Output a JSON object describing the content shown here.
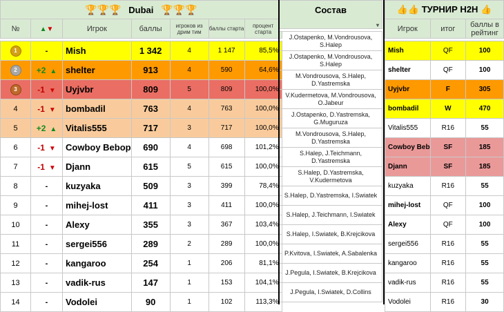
{
  "header": {
    "trophy_icon": "trophy-icon",
    "title": "Dubai",
    "col_num": "№",
    "col_player": "Игрок",
    "col_points": "баллы",
    "col_dreamteam": "игроков из дрим тим",
    "col_start_points": "баллы старта",
    "col_start_percent": "процент старта",
    "sostav_title": "Состав",
    "dropdown_icon": "▾",
    "h2h_icon": "thumbs-icon",
    "h2h_title": "ТУРНИР H2H",
    "h2h_player": "Игрок",
    "h2h_result": "итог",
    "h2h_rating_points": "баллы в рейтинг"
  },
  "colors": {
    "header_bg": "#d9ead3",
    "first": "#ffff00",
    "second": "#ff9900",
    "third": "#ea6e63",
    "fourth_fifth": "#f9cb9c",
    "h2h_pink": "#ea9999",
    "up": "#138a1e",
    "down": "#c00000"
  },
  "rows": [
    {
      "num": "",
      "medal": "gold",
      "change": "-",
      "trend": "",
      "player": "Mish",
      "points": "1 342",
      "dreamteam": "4",
      "start_points": "1 147",
      "start_percent": "85,5%",
      "lineup": "J.Ostapenko, M.Vondrousova, S.Halep"
    },
    {
      "num": "",
      "medal": "silver",
      "change": "+2",
      "trend": "up",
      "player": "shelter",
      "points": "913",
      "dreamteam": "4",
      "start_points": "590",
      "start_percent": "64,6%",
      "lineup": "J.Ostapenko, M.Vondrousova, S.Halep"
    },
    {
      "num": "",
      "medal": "bronze",
      "change": "-1",
      "trend": "down",
      "player": "Uyjvbr",
      "points": "809",
      "dreamteam": "5",
      "start_points": "809",
      "start_percent": "100,0%",
      "lineup": "M.Vondrousova, S.Halep, D.Yastremska"
    },
    {
      "num": "4",
      "medal": "",
      "change": "-1",
      "trend": "down",
      "player": "bombadil",
      "points": "763",
      "dreamteam": "4",
      "start_points": "763",
      "start_percent": "100,0%",
      "lineup": "V.Kudermetova, M.Vondrousova, O.Jabeur"
    },
    {
      "num": "5",
      "medal": "",
      "change": "+2",
      "trend": "up",
      "player": "Vitalis555",
      "points": "717",
      "dreamteam": "3",
      "start_points": "717",
      "start_percent": "100,0%",
      "lineup": "J.Ostapenko, D.Yastremska, G.Muguruza"
    },
    {
      "num": "6",
      "medal": "",
      "change": "-1",
      "trend": "down",
      "player": "Cowboy Bebop",
      "points": "690",
      "dreamteam": "4",
      "start_points": "698",
      "start_percent": "101,2%",
      "lineup": "M.Vondrousova, S.Halep, D.Yastremska"
    },
    {
      "num": "7",
      "medal": "",
      "change": "-1",
      "trend": "down",
      "player": "Djann",
      "points": "615",
      "dreamteam": "5",
      "start_points": "615",
      "start_percent": "100,0%",
      "lineup": "S.Halep, J.Teichmann, D.Yastremska"
    },
    {
      "num": "8",
      "medal": "",
      "change": "-",
      "trend": "",
      "player": "kuzyaka",
      "points": "509",
      "dreamteam": "3",
      "start_points": "399",
      "start_percent": "78,4%",
      "lineup": "S.Halep, D.Yastremska, V.Kudermetova"
    },
    {
      "num": "9",
      "medal": "",
      "change": "-",
      "trend": "",
      "player": "mihej-lost",
      "points": "411",
      "dreamteam": "3",
      "start_points": "411",
      "start_percent": "100,0%",
      "lineup": "S.Halep, D.Yastremska, I.Swiatek"
    },
    {
      "num": "10",
      "medal": "",
      "change": "-",
      "trend": "",
      "player": "Alexy",
      "points": "355",
      "dreamteam": "3",
      "start_points": "367",
      "start_percent": "103,4%",
      "lineup": "S.Halep, J.Teichmann, I.Swiatek"
    },
    {
      "num": "11",
      "medal": "",
      "change": "-",
      "trend": "",
      "player": "sergei556",
      "points": "289",
      "dreamteam": "2",
      "start_points": "289",
      "start_percent": "100,0%",
      "lineup": "S.Halep, I.Swiatek, B.Krejcikova"
    },
    {
      "num": "12",
      "medal": "",
      "change": "-",
      "trend": "",
      "player": "kangaroo",
      "points": "254",
      "dreamteam": "1",
      "start_points": "206",
      "start_percent": "81,1%",
      "lineup": "P.Kvitova, I.Swiatek, A.Sabalenka"
    },
    {
      "num": "13",
      "medal": "",
      "change": "-",
      "trend": "",
      "player": "vadik-rus",
      "points": "147",
      "dreamteam": "1",
      "start_points": "153",
      "start_percent": "104,1%",
      "lineup": "J.Pegula, I.Swiatek, B.Krejcikova"
    },
    {
      "num": "14",
      "medal": "",
      "change": "-",
      "trend": "",
      "player": "Vodolei",
      "points": "90",
      "dreamteam": "1",
      "start_points": "102",
      "start_percent": "113,3%",
      "lineup": "J.Pegula, I.Swiatek, D.Collins"
    }
  ],
  "h2h": [
    {
      "player": "Mish",
      "result": "QF",
      "points": "100"
    },
    {
      "player": "shelter",
      "result": "QF",
      "points": "100"
    },
    {
      "player": "Uyjvbr",
      "result": "F",
      "points": "305"
    },
    {
      "player": "bombadil",
      "result": "W",
      "points": "470"
    },
    {
      "player": "Vitalis555",
      "result": "R16",
      "points": "55"
    },
    {
      "player": "Cowboy Beb",
      "result": "SF",
      "points": "185"
    },
    {
      "player": "Djann",
      "result": "SF",
      "points": "185"
    },
    {
      "player": "kuzyaka",
      "result": "R16",
      "points": "55"
    },
    {
      "player": "mihej-lost",
      "result": "QF",
      "points": "100"
    },
    {
      "player": "Alexy",
      "result": "QF",
      "points": "100"
    },
    {
      "player": "sergei556",
      "result": "R16",
      "points": "55"
    },
    {
      "player": "kangaroo",
      "result": "R16",
      "points": "55"
    },
    {
      "player": "vadik-rus",
      "result": "R16",
      "points": "55"
    },
    {
      "player": "Vodolei",
      "result": "R16",
      "points": "30"
    }
  ]
}
